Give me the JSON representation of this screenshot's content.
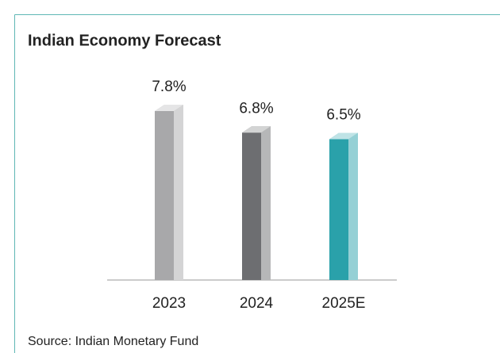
{
  "chart_data": {
    "type": "bar",
    "title": "Indian Economy Forecast",
    "categories": [
      "2023",
      "2024",
      "2025E"
    ],
    "values": [
      7.8,
      6.8,
      6.5
    ],
    "value_labels": [
      "7.8%",
      "6.8%",
      "6.5%"
    ],
    "colors": [
      "#a8a8aa",
      "#6d6e71",
      "#2aa1aa"
    ],
    "source": "Source: Indian Monetary Fund"
  }
}
